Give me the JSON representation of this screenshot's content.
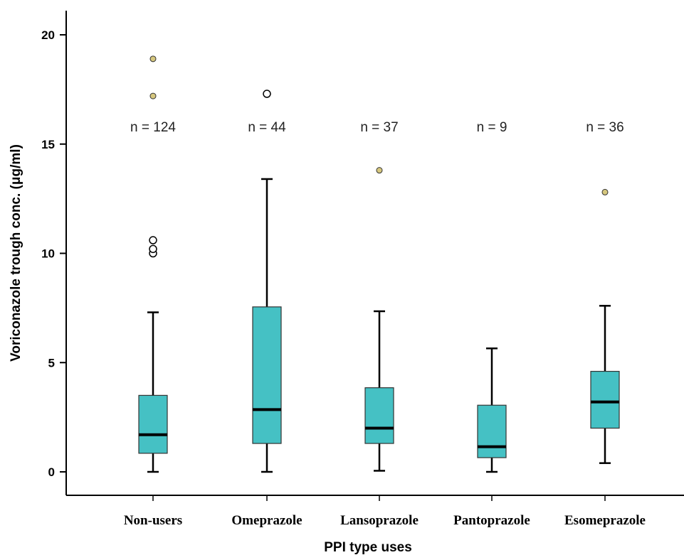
{
  "chart_data": {
    "type": "box",
    "xlabel": "PPI type uses",
    "ylabel": "Voriconazole trough conc. (μg/ml)",
    "ylim": [
      0,
      20
    ],
    "yticks": [
      0,
      5,
      10,
      15,
      20
    ],
    "grid": false,
    "box_color": "#45C1C4",
    "categories": [
      "Non-users",
      "Omeprazole",
      "Lansoprazole",
      "Pantoprazole",
      "Esomeprazole"
    ],
    "n_labels": [
      "n = 124",
      "n = 44",
      "n = 37",
      "n = 9",
      "n = 36"
    ],
    "boxes": [
      {
        "category": "Non-users",
        "whisker_low": 0.0,
        "q1": 0.85,
        "median": 1.7,
        "q3": 3.5,
        "whisker_high": 7.3,
        "outliers": [
          10.0,
          10.2,
          10.6
        ],
        "extremes": [
          17.2,
          18.9
        ]
      },
      {
        "category": "Omeprazole",
        "whisker_low": 0.0,
        "q1": 1.3,
        "median": 2.85,
        "q3": 7.55,
        "whisker_high": 13.4,
        "outliers": [
          17.3
        ],
        "extremes": []
      },
      {
        "category": "Lansoprazole",
        "whisker_low": 0.05,
        "q1": 1.3,
        "median": 2.0,
        "q3": 3.85,
        "whisker_high": 7.35,
        "outliers": [],
        "extremes": [
          13.8
        ]
      },
      {
        "category": "Pantoprazole",
        "whisker_low": 0.0,
        "q1": 0.65,
        "median": 1.15,
        "q3": 3.05,
        "whisker_high": 5.65,
        "outliers": [],
        "extremes": []
      },
      {
        "category": "Esomeprazole",
        "whisker_low": 0.4,
        "q1": 2.0,
        "median": 3.2,
        "q3": 4.6,
        "whisker_high": 7.6,
        "outliers": [],
        "extremes": [
          12.8
        ]
      }
    ]
  }
}
